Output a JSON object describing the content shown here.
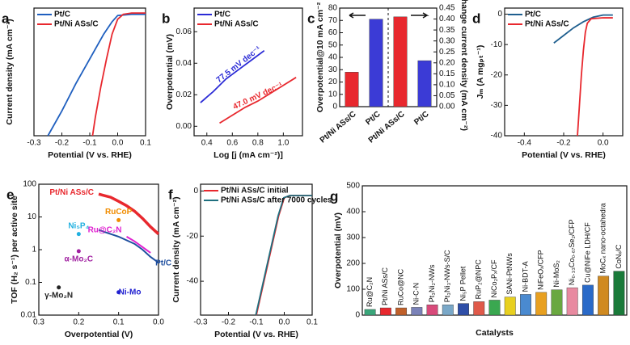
{
  "chart_data": [
    {
      "type": "line",
      "label": "a",
      "x_label": "Potential (V vs. RHE)",
      "y_label": "Current density (mA cm⁻²)",
      "xlim": [
        -0.3,
        0.1
      ],
      "xticks": [
        -0.3,
        -0.2,
        -0.1,
        {
          "value": 0,
          "label": "0.0"
        },
        0.1
      ],
      "ylim": [
        -100,
        3
      ],
      "series": [
        {
          "name": "Pt/C",
          "color": "#1f5fbf",
          "x": [
            -0.25,
            -0.2,
            -0.15,
            -0.1,
            -0.05,
            -0.02,
            0,
            0.05,
            0.1
          ],
          "values": [
            -100,
            -80,
            -58,
            -38,
            -18,
            -8,
            -3,
            -2,
            -2
          ]
        },
        {
          "name": "Pt/Ni ASs/C",
          "color": "#e8282e",
          "x": [
            -0.09,
            -0.08,
            -0.06,
            -0.04,
            -0.02,
            0,
            0.02,
            0.05,
            0.1
          ],
          "values": [
            -100,
            -85,
            -60,
            -38,
            -18,
            -6,
            -2,
            -1,
            -1
          ]
        }
      ]
    },
    {
      "type": "line",
      "label": "b",
      "x_label": "Log [j (mA cm⁻²)]",
      "y_label": "Overpotential (mV)",
      "xlim": [
        0.3,
        1.15
      ],
      "xticks": [
        0.4,
        0.6,
        0.8,
        {
          "value": 1,
          "label": "1.0"
        }
      ],
      "ylim": [
        -0.006,
        0.075
      ],
      "yticks": [
        {
          "value": 0,
          "label": "0.00"
        },
        0.02,
        0.04,
        0.06
      ],
      "annotations": [
        "77.5 mV dec⁻¹",
        "47.0 mV dec⁻¹"
      ],
      "series": [
        {
          "name": "Pt/C",
          "color": "#2b2bd6",
          "x": [
            0.35,
            0.45,
            0.55,
            0.65,
            0.75,
            0.85
          ],
          "values": [
            0.015,
            0.022,
            0.03,
            0.036,
            0.042,
            0.048
          ]
        },
        {
          "name": "Pt/Ni ASs/C",
          "color": "#e8282e",
          "x": [
            0.5,
            0.6,
            0.7,
            0.8,
            0.9,
            1.0,
            1.1
          ],
          "values": [
            0.002,
            0.007,
            0.012,
            0.016,
            0.021,
            0.026,
            0.031
          ]
        }
      ]
    },
    {
      "type": "bar",
      "label": "c",
      "y_label": "Overpotential@10 mA cm⁻²",
      "y2_label": "Exchange current density (mA cm⁻²)",
      "categories": [
        "Pt/Ni ASs/C",
        "Pt/C",
        "Pt/Ni ASs/C",
        "Pt/C"
      ],
      "colors": [
        "#e8282e",
        "#3b3bd6",
        "#e8282e",
        "#3b3bd6"
      ],
      "ylim": [
        0,
        80
      ],
      "yticks": [
        0,
        10,
        20,
        30,
        40,
        50,
        60,
        70,
        80
      ],
      "y2lim": [
        0,
        0.45
      ],
      "y2ticks": [
        {
          "value": 0,
          "label": "0.00"
        },
        0.05,
        {
          "value": 0.1,
          "label": "0.10"
        },
        0.15,
        {
          "value": 0.2,
          "label": "0.20"
        },
        0.25,
        {
          "value": 0.3,
          "label": "0.30"
        },
        0.35,
        {
          "value": 0.4,
          "label": "0.40"
        },
        0.45
      ],
      "series": [
        {
          "values": [
            28,
            71,
            null,
            null
          ]
        },
        {
          "axis": "y2",
          "values": [
            null,
            null,
            0.41,
            0.21
          ]
        }
      ]
    },
    {
      "type": "line",
      "label": "d",
      "x_label": "Potential (V vs. RHE)",
      "y_label": "Jₘ (A mgₚₜ⁻¹)",
      "xlim": [
        -0.5,
        0.1
      ],
      "xticks": [
        -0.4,
        -0.2,
        {
          "value": 0,
          "label": "0.0"
        }
      ],
      "ylim": [
        -40,
        2
      ],
      "yticks": [
        0,
        -10,
        -20,
        -30,
        -40
      ],
      "series": [
        {
          "name": "Pt/C",
          "color": "#1f5f8f",
          "x": [
            -0.25,
            -0.2,
            -0.15,
            -0.1,
            -0.05,
            0,
            0.05
          ],
          "values": [
            -9.5,
            -7,
            -4.5,
            -2.5,
            -1,
            -0.3,
            -0.3
          ]
        },
        {
          "name": "Pt/Ni ASs/C",
          "color": "#e8282e",
          "x": [
            -0.13,
            -0.12,
            -0.11,
            -0.1,
            -0.09,
            -0.08,
            -0.06,
            0,
            0.05
          ],
          "values": [
            -40,
            -30,
            -20,
            -12,
            -6,
            -3,
            -1.5,
            -1.2,
            -1.2
          ]
        }
      ]
    },
    {
      "type": "scatter",
      "label": "e",
      "x_label": "Overpotential (V)",
      "y_label": "TOF (H₂ s⁻¹) per active site",
      "xlim": [
        0.3,
        0.0
      ],
      "xticks": [
        0.3,
        0.2,
        0.1,
        {
          "value": 0,
          "label": "0.0"
        }
      ],
      "log_y": true,
      "ylim": [
        0.01,
        100
      ],
      "yticks": [
        0.01,
        0.1,
        1,
        10,
        100
      ],
      "series": [
        {
          "name": "Pt/Ni ASs/C",
          "color": "#e8282e",
          "x": [
            0.15,
            0.12,
            0.1,
            0.08,
            0.06,
            0.04,
            0.02,
            0.0
          ],
          "values": [
            50,
            40,
            30,
            22,
            15,
            9,
            5,
            3
          ]
        },
        {
          "name": "Pt/C",
          "color": "#1f4f9f",
          "x": [
            0.15,
            0.1,
            0.06,
            0.04,
            0.02,
            0.0
          ],
          "values": [
            4,
            2.5,
            1.5,
            1,
            0.6,
            0.4
          ]
        },
        {
          "name": "Ru@C₂N",
          "color": "#e020d0",
          "x": [
            0.08,
            0.06,
            0.04,
            0.02
          ],
          "values": [
            2.5,
            1.8,
            1.2,
            0.8
          ]
        },
        {
          "name": "RuCoP",
          "color": "#f08c00",
          "x": [
            0.1
          ],
          "values": [
            8
          ]
        },
        {
          "name": "Ni₅P₄",
          "color": "#20b0e0",
          "x": [
            0.2
          ],
          "values": [
            3
          ]
        },
        {
          "name": "α-Mo₂C",
          "color": "#a020a0",
          "x": [
            0.2
          ],
          "values": [
            0.9
          ]
        },
        {
          "name": "Ni-Mo",
          "color": "#2020d0",
          "x": [
            0.1
          ],
          "values": [
            0.05
          ]
        },
        {
          "name": "γ-Mo₂N",
          "color": "#222222",
          "x": [
            0.25
          ],
          "values": [
            0.07
          ]
        }
      ]
    },
    {
      "type": "line",
      "label": "f",
      "x_label": "Potential (V vs. RHE)",
      "y_label": "Current density (mA cm⁻²)",
      "xlim": [
        -0.3,
        0.1
      ],
      "xticks": [
        -0.3,
        -0.2,
        -0.1,
        {
          "value": 0,
          "label": "0.0"
        },
        0.1
      ],
      "ylim": [
        -55,
        3
      ],
      "yticks": [
        0,
        -20,
        -40
      ],
      "series": [
        {
          "name": "Pt/Ni ASs/C initial",
          "color": "#e8282e",
          "x": [
            -0.1,
            -0.08,
            -0.06,
            -0.04,
            -0.02,
            0,
            0.02,
            0.1
          ],
          "values": [
            -55,
            -44,
            -33,
            -22,
            -11,
            -3,
            -2,
            -2
          ]
        },
        {
          "name": "Pt/Ni ASs/C after 7000 cycles",
          "color": "#1f6f7f",
          "x": [
            -0.102,
            -0.082,
            -0.062,
            -0.042,
            -0.022,
            -0.002,
            0.02,
            0.1
          ],
          "values": [
            -55,
            -44,
            -33,
            -22,
            -11,
            -3,
            -2,
            -2
          ]
        }
      ]
    },
    {
      "type": "bar",
      "label": "g",
      "x_label": "Catalysts",
      "y_label": "Overpotential (mV)",
      "categories": [
        "Ru@C₂N",
        "Pt/Ni ASs/C",
        "RuCo@NC",
        "Ni-C-N",
        "Pt₃Ni₂-NWs",
        "Pt₃Ni₃-NWs-S/C",
        "Ni₅P Pellet",
        "RuP₂@NPC",
        "NiCo₂Pₓ/CF",
        "SANi-PtNWs",
        "Ni-BDT-A",
        "NiFeOₓ/CFP",
        "Ni-MoS₂",
        "Ni₀.₃₃Co₀.₆₇Se₂/CFP",
        "Cu@NiFe LDH/CF",
        "MoCₓ nano-octahedra",
        "CoNₓ/C"
      ],
      "values": [
        22,
        28,
        28,
        30,
        40,
        40,
        45,
        52,
        58,
        70,
        80,
        88,
        98,
        106,
        116,
        151,
        170
      ],
      "colors": [
        "#3aa67a",
        "#e8282e",
        "#c0602a",
        "#7a82b8",
        "#d84a7a",
        "#7aa8c8",
        "#2f4fa8",
        "#e05a4a",
        "#3aa850",
        "#e8d020",
        "#4a8ad0",
        "#e8a020",
        "#6aa840",
        "#e88aa0",
        "#2a6ac8",
        "#d08a20",
        "#1a7a3a"
      ],
      "ylim": [
        0,
        500
      ],
      "yticks": [
        0,
        100,
        200,
        300,
        400,
        500
      ]
    }
  ]
}
